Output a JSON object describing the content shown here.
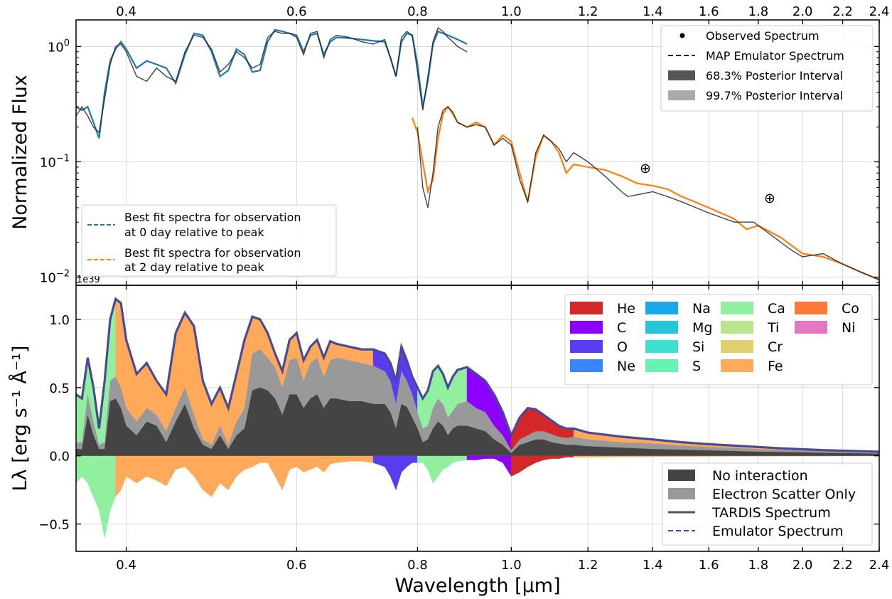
{
  "chart_data": [
    {
      "type": "line",
      "panel": "top",
      "xscale": "log",
      "yscale": "log",
      "xlim": [
        0.355,
        2.4
      ],
      "ylim": [
        0.0085,
        1.7
      ],
      "xticks": [
        0.4,
        0.6,
        0.8,
        1.0,
        1.2,
        1.4,
        1.6,
        1.8,
        2.0,
        2.2,
        2.4
      ],
      "xtick_labels": [
        "0.4",
        "0.6",
        "0.8",
        "1.0",
        "1.2",
        "1.4",
        "1.6",
        "1.8",
        "2.0",
        "2.2",
        "2.4"
      ],
      "ytick_labels": {
        "base": "10",
        "exponents": [
          "−2",
          "−1",
          "0"
        ]
      },
      "ylabel": "Normalized Flux",
      "telluric_markers": [
        "⊕",
        "⊕"
      ],
      "legend_right": [
        {
          "label": "Observed Spectrum",
          "style": "dot",
          "color": "#000000"
        },
        {
          "label": "MAP Emulator Spectrum",
          "style": "dash",
          "color": "#000000"
        },
        {
          "label": "68.3% Posterior Interval",
          "style": "patch",
          "color": "#555555"
        },
        {
          "label": "99.7% Posterior Interval",
          "style": "patch",
          "color": "#aaaaaa"
        }
      ],
      "legend_left": [
        {
          "label_line1": "Best fit spectra for observation",
          "label_line2": "at 0 day relative to peak",
          "color": "#1f77b4"
        },
        {
          "label_line1": "Best fit spectra for observation",
          "label_line2": "at 2 day relative to peak",
          "color": "#ff7f0e"
        }
      ],
      "series": [
        {
          "name": "Best fit 0 day",
          "color": "#1f77b4",
          "x": [
            0.355,
            0.36,
            0.365,
            0.37,
            0.375,
            0.38,
            0.385,
            0.39,
            0.395,
            0.4,
            0.41,
            0.42,
            0.43,
            0.44,
            0.45,
            0.46,
            0.47,
            0.48,
            0.49,
            0.5,
            0.51,
            0.52,
            0.53,
            0.54,
            0.55,
            0.56,
            0.57,
            0.58,
            0.59,
            0.6,
            0.61,
            0.62,
            0.63,
            0.64,
            0.65,
            0.66,
            0.68,
            0.7,
            0.72,
            0.74,
            0.75,
            0.76,
            0.77,
            0.78,
            0.79,
            0.8,
            0.81,
            0.82,
            0.83,
            0.84,
            0.85,
            0.86,
            0.87,
            0.88,
            0.89,
            0.9
          ],
          "y": [
            0.3,
            0.28,
            0.3,
            0.22,
            0.16,
            0.4,
            0.75,
            0.95,
            1.1,
            0.95,
            0.65,
            0.75,
            0.7,
            0.65,
            0.48,
            0.85,
            1.3,
            1.25,
            0.9,
            0.55,
            0.62,
            0.95,
            0.85,
            0.6,
            0.62,
            1.1,
            1.4,
            1.35,
            1.3,
            1.25,
            0.9,
            1.25,
            1.3,
            0.85,
            1.1,
            1.2,
            1.18,
            1.15,
            1.12,
            1.1,
            0.8,
            0.55,
            1.1,
            1.3,
            1.25,
            0.7,
            0.3,
            0.5,
            1.05,
            1.35,
            1.3,
            1.25,
            1.2,
            1.15,
            1.1,
            1.05
          ]
        },
        {
          "name": "Best fit 2 day",
          "color": "#ff7f0e",
          "x": [
            0.79,
            0.8,
            0.81,
            0.82,
            0.83,
            0.84,
            0.85,
            0.86,
            0.87,
            0.88,
            0.9,
            0.92,
            0.94,
            0.96,
            0.98,
            1.0,
            1.02,
            1.04,
            1.06,
            1.08,
            1.1,
            1.12,
            1.14,
            1.16,
            1.2,
            1.25,
            1.3,
            1.35,
            1.4,
            1.45,
            1.5,
            1.6,
            1.7,
            1.75,
            1.8,
            1.9,
            2.0,
            2.1,
            2.2,
            2.3,
            2.4
          ],
          "y": [
            0.24,
            0.18,
            0.1,
            0.055,
            0.07,
            0.16,
            0.26,
            0.3,
            0.26,
            0.22,
            0.2,
            0.22,
            0.2,
            0.14,
            0.17,
            0.15,
            0.08,
            0.045,
            0.11,
            0.17,
            0.15,
            0.12,
            0.08,
            0.095,
            0.09,
            0.085,
            0.075,
            0.065,
            0.062,
            0.058,
            0.05,
            0.04,
            0.032,
            0.026,
            0.028,
            0.022,
            0.016,
            0.015,
            0.013,
            0.011,
            0.0095
          ]
        },
        {
          "name": "Observed 0 day",
          "color": "#222222",
          "x": [
            0.355,
            0.36,
            0.365,
            0.37,
            0.375,
            0.38,
            0.385,
            0.39,
            0.395,
            0.4,
            0.41,
            0.42,
            0.43,
            0.44,
            0.45,
            0.46,
            0.47,
            0.48,
            0.49,
            0.5,
            0.51,
            0.52,
            0.53,
            0.54,
            0.55,
            0.56,
            0.57,
            0.58,
            0.59,
            0.6,
            0.61,
            0.62,
            0.63,
            0.64,
            0.65,
            0.66,
            0.68,
            0.7,
            0.72,
            0.74,
            0.75,
            0.76,
            0.77,
            0.78,
            0.79,
            0.8,
            0.81,
            0.82,
            0.83,
            0.84,
            0.85,
            0.86,
            0.87,
            0.88,
            0.89,
            0.9
          ],
          "y": [
            0.25,
            0.3,
            0.25,
            0.2,
            0.18,
            0.35,
            0.7,
            1.0,
            1.05,
            0.9,
            0.55,
            0.5,
            0.65,
            0.55,
            0.5,
            0.9,
            1.25,
            1.2,
            0.95,
            0.6,
            0.7,
            0.9,
            0.8,
            0.65,
            0.7,
            1.2,
            1.35,
            1.3,
            1.3,
            1.2,
            0.85,
            1.3,
            1.35,
            0.8,
            1.15,
            1.25,
            1.2,
            1.1,
            1.05,
            1.15,
            0.8,
            0.55,
            1.2,
            1.35,
            1.25,
            0.6,
            0.28,
            0.55,
            1.1,
            1.45,
            1.35,
            1.2,
            1.1,
            1.0,
            0.95,
            0.9
          ]
        },
        {
          "name": "Observed 2 day",
          "color": "#222222",
          "x": [
            0.8,
            0.81,
            0.82,
            0.83,
            0.84,
            0.85,
            0.86,
            0.87,
            0.88,
            0.9,
            0.92,
            0.94,
            0.96,
            0.98,
            1.0,
            1.02,
            1.04,
            1.06,
            1.08,
            1.1,
            1.12,
            1.14,
            1.16,
            1.2,
            1.25,
            1.3,
            1.32,
            1.4,
            1.45,
            1.5,
            1.6,
            1.7,
            1.78,
            1.95,
            2.0,
            2.1,
            2.2,
            2.3,
            2.4
          ],
          "y": [
            0.2,
            0.06,
            0.04,
            0.08,
            0.2,
            0.28,
            0.3,
            0.27,
            0.22,
            0.2,
            0.21,
            0.2,
            0.14,
            0.16,
            0.14,
            0.07,
            0.045,
            0.12,
            0.17,
            0.15,
            0.13,
            0.1,
            0.12,
            0.1,
            0.075,
            0.055,
            0.05,
            0.055,
            0.05,
            0.045,
            0.036,
            0.03,
            0.03,
            0.017,
            0.015,
            0.016,
            0.013,
            0.011,
            0.0095
          ]
        }
      ]
    },
    {
      "type": "area",
      "panel": "bottom",
      "xscale": "log",
      "xlim": [
        0.355,
        2.4
      ],
      "ylim": [
        -0.7,
        1.25
      ],
      "scale_factor": "1e39",
      "yticks": [
        -0.5,
        0.0,
        0.5,
        1.0
      ],
      "ytick_labels": [
        "−0.5",
        "0.0",
        "0.5",
        "1.0"
      ],
      "xtick_labels": [
        "0.4",
        "0.6",
        "0.8",
        "1.0",
        "1.2",
        "1.4",
        "1.6",
        "1.8",
        "2.0",
        "2.2",
        "2.4"
      ],
      "xlabel": "Wavelength [μm]",
      "ylabel": "Lλ [erg s⁻¹ Å⁻¹]",
      "element_legend": [
        {
          "label": "He",
          "color": "#d62728"
        },
        {
          "label": "C",
          "color": "#8b00ff"
        },
        {
          "label": "O",
          "color": "#5a3cf0"
        },
        {
          "label": "Ne",
          "color": "#3a86ff"
        },
        {
          "label": "Na",
          "color": "#1aa7ec"
        },
        {
          "label": "Mg",
          "color": "#26c6da"
        },
        {
          "label": "Si",
          "color": "#40e0d0"
        },
        {
          "label": "S",
          "color": "#66f2b0"
        },
        {
          "label": "Ca",
          "color": "#90f0a0"
        },
        {
          "label": "Ti",
          "color": "#b8e68a"
        },
        {
          "label": "Cr",
          "color": "#e0d070"
        },
        {
          "label": "Fe",
          "color": "#ffa95a"
        },
        {
          "label": "Co",
          "color": "#ff7a3a"
        },
        {
          "label": "Ni",
          "color": "#e377c2"
        }
      ],
      "legend_bottom": [
        {
          "label": "No interaction",
          "style": "patch",
          "color": "#444444"
        },
        {
          "label": "Electron Scatter Only",
          "style": "patch",
          "color": "#999999"
        },
        {
          "label": "TARDIS Spectrum",
          "style": "line",
          "color": "#555555"
        },
        {
          "label": "Emulator Spectrum",
          "style": "dash",
          "color": "#3a3cf0"
        }
      ],
      "x": [
        0.355,
        0.36,
        0.365,
        0.37,
        0.375,
        0.38,
        0.385,
        0.39,
        0.395,
        0.4,
        0.41,
        0.42,
        0.43,
        0.44,
        0.45,
        0.46,
        0.47,
        0.48,
        0.49,
        0.5,
        0.51,
        0.52,
        0.53,
        0.54,
        0.55,
        0.56,
        0.57,
        0.58,
        0.59,
        0.6,
        0.61,
        0.62,
        0.63,
        0.64,
        0.65,
        0.66,
        0.68,
        0.7,
        0.72,
        0.74,
        0.75,
        0.76,
        0.77,
        0.78,
        0.79,
        0.8,
        0.81,
        0.82,
        0.83,
        0.84,
        0.85,
        0.86,
        0.87,
        0.88,
        0.9,
        0.92,
        0.94,
        0.96,
        0.98,
        1.0,
        1.02,
        1.04,
        1.06,
        1.08,
        1.1,
        1.12,
        1.14,
        1.16,
        1.2,
        1.3,
        1.4,
        1.5,
        1.6,
        1.7,
        1.8,
        1.9,
        2.0,
        2.1,
        2.2,
        2.3,
        2.4
      ],
      "total": [
        0.45,
        0.42,
        0.72,
        0.5,
        0.2,
        0.55,
        1.0,
        1.15,
        1.12,
        0.85,
        0.6,
        0.68,
        0.55,
        0.45,
        0.9,
        1.05,
        0.95,
        0.55,
        0.38,
        0.5,
        0.35,
        0.6,
        0.85,
        1.02,
        1.0,
        0.9,
        0.75,
        0.62,
        0.85,
        0.9,
        0.7,
        0.8,
        0.85,
        0.72,
        0.84,
        0.82,
        0.8,
        0.78,
        0.78,
        0.75,
        0.68,
        0.55,
        0.8,
        0.7,
        0.58,
        0.5,
        0.42,
        0.48,
        0.62,
        0.66,
        0.6,
        0.5,
        0.58,
        0.63,
        0.65,
        0.6,
        0.55,
        0.45,
        0.32,
        0.15,
        0.28,
        0.35,
        0.34,
        0.3,
        0.26,
        0.22,
        0.2,
        0.2,
        0.17,
        0.14,
        0.12,
        0.1,
        0.085,
        0.075,
        0.065,
        0.055,
        0.048,
        0.042,
        0.038,
        0.034,
        0.03
      ],
      "no_interaction": [
        0.05,
        0.05,
        0.3,
        0.15,
        0.05,
        0.05,
        0.4,
        0.42,
        0.35,
        0.22,
        0.15,
        0.25,
        0.22,
        0.1,
        0.25,
        0.38,
        0.2,
        0.08,
        0.05,
        0.15,
        0.05,
        0.15,
        0.2,
        0.48,
        0.5,
        0.48,
        0.42,
        0.3,
        0.45,
        0.45,
        0.35,
        0.42,
        0.45,
        0.35,
        0.42,
        0.42,
        0.4,
        0.4,
        0.38,
        0.38,
        0.32,
        0.2,
        0.38,
        0.36,
        0.28,
        0.2,
        0.1,
        0.12,
        0.2,
        0.25,
        0.22,
        0.15,
        0.2,
        0.22,
        0.22,
        0.2,
        0.18,
        0.12,
        0.08,
        0.02,
        0.08,
        0.1,
        0.12,
        0.12,
        0.1,
        0.09,
        0.08,
        0.08,
        0.07,
        0.06,
        0.05,
        0.045,
        0.04,
        0.035,
        0.03,
        0.028,
        0.025,
        0.022,
        0.02,
        0.018,
        0.016
      ],
      "electron_scatter": [
        0.1,
        0.1,
        0.45,
        0.25,
        0.08,
        0.1,
        0.55,
        0.58,
        0.5,
        0.35,
        0.25,
        0.35,
        0.3,
        0.18,
        0.35,
        0.5,
        0.3,
        0.12,
        0.08,
        0.22,
        0.08,
        0.25,
        0.35,
        0.75,
        0.78,
        0.72,
        0.65,
        0.5,
        0.7,
        0.72,
        0.55,
        0.68,
        0.72,
        0.58,
        0.7,
        0.72,
        0.7,
        0.68,
        0.66,
        0.62,
        0.55,
        0.38,
        0.62,
        0.55,
        0.45,
        0.32,
        0.2,
        0.22,
        0.35,
        0.42,
        0.38,
        0.28,
        0.33,
        0.38,
        0.4,
        0.35,
        0.32,
        0.22,
        0.15,
        0.04,
        0.12,
        0.15,
        0.18,
        0.18,
        0.16,
        0.14,
        0.13,
        0.14,
        0.12,
        0.1,
        0.09,
        0.075,
        0.065,
        0.058,
        0.05,
        0.045,
        0.04,
        0.036,
        0.032,
        0.028,
        0.025
      ],
      "negative": [
        -0.2,
        -0.15,
        -0.2,
        -0.3,
        -0.4,
        -0.6,
        -0.4,
        -0.3,
        -0.25,
        -0.15,
        -0.2,
        -0.15,
        -0.18,
        -0.22,
        -0.1,
        -0.08,
        -0.15,
        -0.25,
        -0.3,
        -0.2,
        -0.25,
        -0.15,
        -0.1,
        -0.08,
        -0.05,
        -0.05,
        -0.15,
        -0.25,
        -0.1,
        -0.08,
        -0.12,
        -0.1,
        -0.08,
        -0.12,
        -0.06,
        -0.05,
        -0.04,
        -0.04,
        -0.05,
        -0.08,
        -0.15,
        -0.25,
        -0.12,
        -0.08,
        -0.05,
        -0.05,
        -0.05,
        -0.1,
        -0.2,
        -0.15,
        -0.1,
        -0.08,
        -0.05,
        -0.04,
        -0.03,
        -0.03,
        -0.02,
        -0.02,
        -0.05,
        -0.15,
        -0.12,
        -0.08,
        -0.05,
        -0.03,
        -0.02,
        -0.02,
        -0.01,
        -0.01,
        -0.01,
        -0.008,
        -0.006,
        -0.005,
        -0.004,
        -0.003,
        -0.003,
        -0.002,
        -0.002,
        -0.002,
        -0.001,
        -0.001,
        -0.001
      ]
    }
  ]
}
